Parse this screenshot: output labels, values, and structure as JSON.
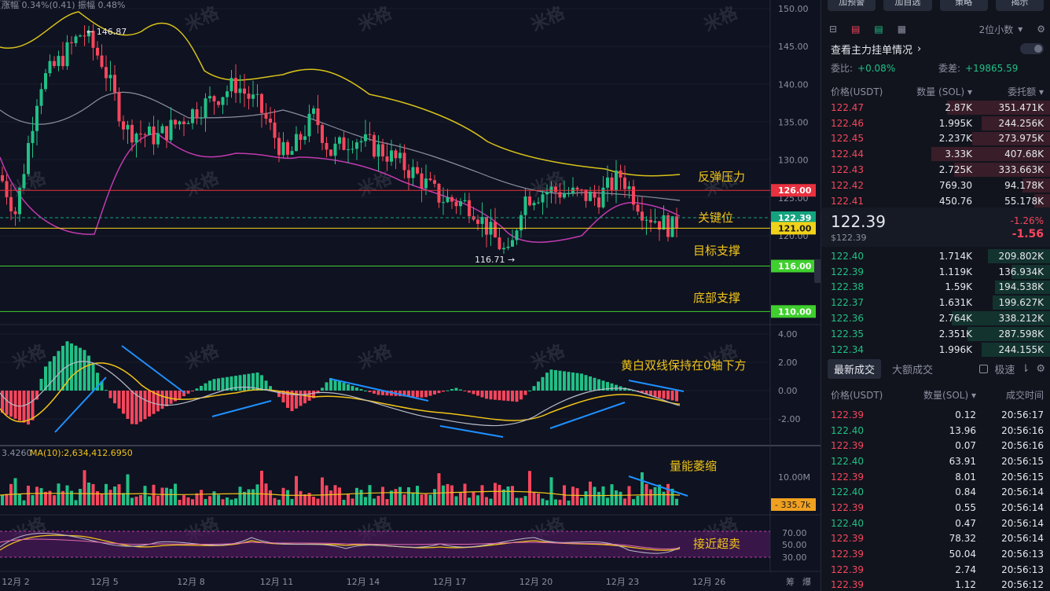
{
  "chart": {
    "header_info": "涨幅 0.34%(0.41)  振幅 0.48%",
    "price_axis": [
      "150.00",
      "145.00",
      "140.00",
      "135.00",
      "130.00",
      "125.00",
      "120.00"
    ],
    "macd_axis": [
      "4.00",
      "2.00",
      "0.00",
      "-2.00"
    ],
    "vol_axis": [
      "10.00M"
    ],
    "rsi_axis": [
      "70.00",
      "50.00",
      "30.00"
    ],
    "date_axis": [
      "12月 2",
      "12月 5",
      "12月 8",
      "12月 11",
      "12月 14",
      "12月 17",
      "12月 20",
      "12月 23",
      "12月 26"
    ],
    "axis_footer": [
      "筹",
      "爆"
    ],
    "high_label": "← 146.87",
    "low_label": "116.71 →",
    "vol_info_left": "3.4260",
    "vol_ma_label": "MA(10):2,634,412.6950",
    "levels": [
      {
        "label": "126.00",
        "price": 126.0,
        "color": "#e8313f",
        "annotation": "反弹压力"
      },
      {
        "label": "122.39",
        "price": 122.39,
        "color": "#14a37f",
        "annotation": "关键位"
      },
      {
        "label": "121.00",
        "price": 121.0,
        "color": "#f0d21a",
        "annotation": ""
      },
      {
        "label": "116.00",
        "price": 116.0,
        "color": "#3fcf2e",
        "annotation": "目标支撑"
      },
      {
        "label": "110.00",
        "price": 110.0,
        "color": "#3fcf2e",
        "annotation": "底部支撑"
      }
    ],
    "macd_annotation": "黄白双线保持在0轴下方",
    "vol_annotation": "量能萎缩",
    "vol_current": "335.7k",
    "rsi_annotation": "接近超卖",
    "watermark": "米格",
    "colors": {
      "up": "#21c086",
      "down": "#f6465d",
      "boll_upper": "#d8c21a",
      "boll_lower": "#c03ab0",
      "boll_mid": "#8a8fa0",
      "arrow": "#1e90ff"
    }
  },
  "panel": {
    "top_buttons": [
      "加预警",
      "加自选",
      "策略",
      "揭示"
    ],
    "precision": "2位小数",
    "title": "查看主力挂单情况",
    "ratio_label": "委比:",
    "ratio_value": "+0.08%",
    "diff_label": "委差:",
    "diff_value": "+19865.59",
    "ob_headers": [
      "价格(USDT)",
      "数量 (SOL)",
      "委托额"
    ],
    "asks": [
      {
        "p": "122.47",
        "q": "2.87K",
        "t": "351.471K",
        "w": 0.45
      },
      {
        "p": "122.46",
        "q": "1.995K",
        "t": "244.256K",
        "w": 0.3
      },
      {
        "p": "122.45",
        "q": "2.237K",
        "t": "273.975K",
        "w": 0.34
      },
      {
        "p": "122.44",
        "q": "3.33K",
        "t": "407.68K",
        "w": 0.52
      },
      {
        "p": "122.43",
        "q": "2.725K",
        "t": "333.663K",
        "w": 0.42
      },
      {
        "p": "122.42",
        "q": "769.30",
        "t": "94.178K",
        "w": 0.12
      },
      {
        "p": "122.41",
        "q": "450.76",
        "t": "55.178K",
        "w": 0.07
      }
    ],
    "last_price": "122.39",
    "last_price_sub": "$122.39",
    "last_pct": "-1.26%",
    "last_chg": "-1.56",
    "bids": [
      {
        "p": "122.40",
        "q": "1.714K",
        "t": "209.802K",
        "w": 0.27
      },
      {
        "p": "122.39",
        "q": "1.119K",
        "t": "136.934K",
        "w": 0.17
      },
      {
        "p": "122.38",
        "q": "1.59K",
        "t": "194.538K",
        "w": 0.24
      },
      {
        "p": "122.37",
        "q": "1.631K",
        "t": "199.627K",
        "w": 0.25
      },
      {
        "p": "122.36",
        "q": "2.764K",
        "t": "338.212K",
        "w": 0.43
      },
      {
        "p": "122.35",
        "q": "2.351K",
        "t": "287.598K",
        "w": 0.36
      },
      {
        "p": "122.34",
        "q": "1.996K",
        "t": "244.155K",
        "w": 0.3
      }
    ],
    "trade_tab_active": "最新成交",
    "trade_tab_other": "大额成交",
    "trade_speed": "极速",
    "tr_headers": [
      "价格(USDT)",
      "数量(SOL)",
      "成交时间"
    ],
    "trades": [
      {
        "p": "122.39",
        "q": "0.12",
        "t": "20:56:17",
        "d": "down"
      },
      {
        "p": "122.40",
        "q": "13.96",
        "t": "20:56:16",
        "d": "up"
      },
      {
        "p": "122.39",
        "q": "0.07",
        "t": "20:56:16",
        "d": "down"
      },
      {
        "p": "122.40",
        "q": "63.91",
        "t": "20:56:15",
        "d": "up"
      },
      {
        "p": "122.39",
        "q": "8.01",
        "t": "20:56:15",
        "d": "down"
      },
      {
        "p": "122.40",
        "q": "0.84",
        "t": "20:56:14",
        "d": "up"
      },
      {
        "p": "122.39",
        "q": "0.55",
        "t": "20:56:14",
        "d": "down"
      },
      {
        "p": "122.40",
        "q": "0.47",
        "t": "20:56:14",
        "d": "up"
      },
      {
        "p": "122.39",
        "q": "78.32",
        "t": "20:56:14",
        "d": "down"
      },
      {
        "p": "122.39",
        "q": "50.04",
        "t": "20:56:13",
        "d": "down"
      },
      {
        "p": "122.39",
        "q": "2.74",
        "t": "20:56:13",
        "d": "down"
      },
      {
        "p": "122.39",
        "q": "1.12",
        "t": "20:56:12",
        "d": "down"
      }
    ]
  }
}
